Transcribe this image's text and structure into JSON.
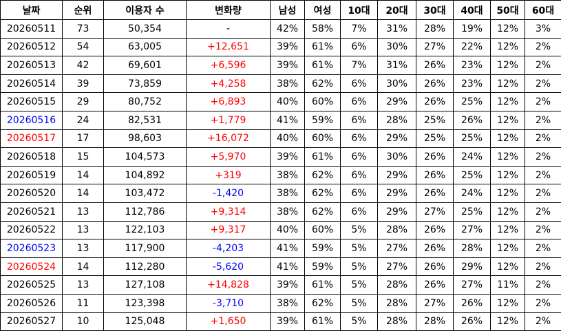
{
  "table": {
    "header": [
      "날짜",
      "순위",
      "이용자 수",
      "변화량",
      "남성",
      "여성",
      "10대",
      "20대",
      "30대",
      "40대",
      "50대",
      "60대"
    ],
    "rows": [
      [
        "20260511",
        "73",
        "50,354",
        "-",
        "42%",
        "58%",
        "7%",
        "31%",
        "28%",
        "19%",
        "12%",
        "3%"
      ],
      [
        "20260512",
        "54",
        "63,005",
        "+12,651",
        "39%",
        "61%",
        "6%",
        "30%",
        "27%",
        "22%",
        "12%",
        "2%"
      ],
      [
        "20260513",
        "42",
        "69,601",
        "+6,596",
        "39%",
        "61%",
        "7%",
        "31%",
        "26%",
        "23%",
        "12%",
        "2%"
      ],
      [
        "20260514",
        "39",
        "73,859",
        "+4,258",
        "38%",
        "62%",
        "6%",
        "30%",
        "26%",
        "23%",
        "12%",
        "2%"
      ],
      [
        "20260515",
        "29",
        "80,752",
        "+6,893",
        "40%",
        "60%",
        "6%",
        "29%",
        "26%",
        "25%",
        "12%",
        "2%"
      ],
      [
        "20260516",
        "24",
        "82,531",
        "+1,779",
        "41%",
        "59%",
        "6%",
        "28%",
        "25%",
        "26%",
        "12%",
        "2%"
      ],
      [
        "20260517",
        "17",
        "98,603",
        "+16,072",
        "40%",
        "60%",
        "6%",
        "29%",
        "25%",
        "25%",
        "12%",
        "2%"
      ],
      [
        "20260518",
        "15",
        "104,573",
        "+5,970",
        "39%",
        "61%",
        "6%",
        "30%",
        "26%",
        "24%",
        "12%",
        "2%"
      ],
      [
        "20260519",
        "14",
        "104,892",
        "+319",
        "38%",
        "62%",
        "6%",
        "29%",
        "26%",
        "25%",
        "12%",
        "2%"
      ],
      [
        "20260520",
        "14",
        "103,472",
        "-1,420",
        "38%",
        "62%",
        "6%",
        "29%",
        "26%",
        "24%",
        "12%",
        "2%"
      ],
      [
        "20260521",
        "13",
        "112,786",
        "+9,314",
        "38%",
        "62%",
        "6%",
        "29%",
        "27%",
        "25%",
        "12%",
        "2%"
      ],
      [
        "20260522",
        "13",
        "122,103",
        "+9,317",
        "40%",
        "60%",
        "5%",
        "28%",
        "26%",
        "27%",
        "12%",
        "2%"
      ],
      [
        "20260523",
        "13",
        "117,900",
        "-4,203",
        "41%",
        "59%",
        "5%",
        "27%",
        "26%",
        "28%",
        "12%",
        "2%"
      ],
      [
        "20260524",
        "14",
        "112,280",
        "-5,620",
        "41%",
        "59%",
        "5%",
        "27%",
        "26%",
        "29%",
        "12%",
        "2%"
      ],
      [
        "20260525",
        "13",
        "127,108",
        "+14,828",
        "39%",
        "61%",
        "5%",
        "28%",
        "26%",
        "27%",
        "11%",
        "2%"
      ],
      [
        "20260526",
        "11",
        "123,398",
        "-3,710",
        "38%",
        "62%",
        "5%",
        "28%",
        "27%",
        "26%",
        "12%",
        "2%"
      ],
      [
        "20260527",
        "10",
        "125,048",
        "+1,650",
        "39%",
        "61%",
        "5%",
        "28%",
        "28%",
        "26%",
        "12%",
        "2%"
      ]
    ]
  }
}
